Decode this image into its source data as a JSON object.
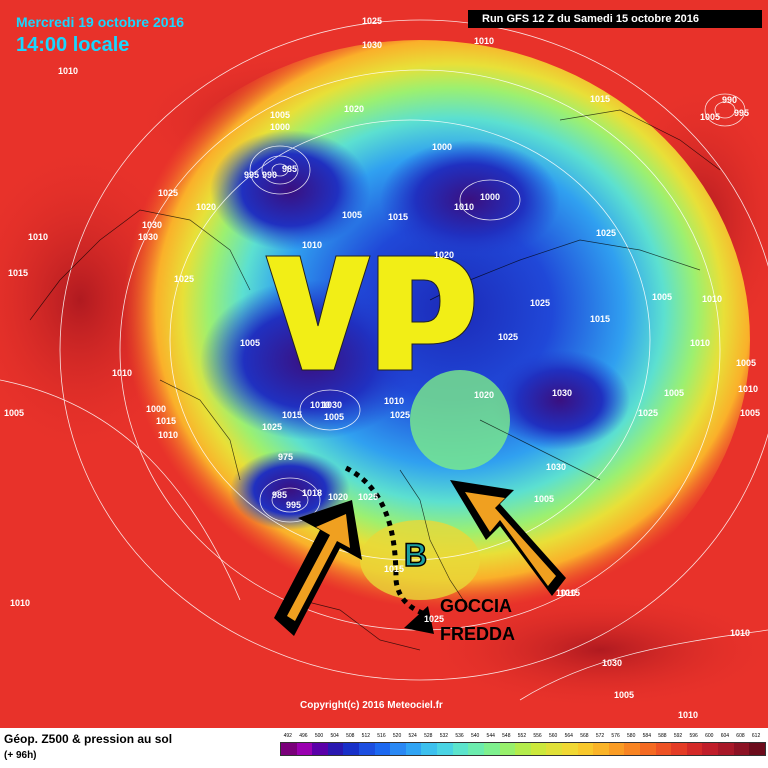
{
  "header": {
    "date": "Mercredi 19 octobre 2016",
    "time": "14:00 locale",
    "run": "Run GFS 12 Z du Samedi 15 octobre 2016"
  },
  "annotations": {
    "vp": "VP",
    "b": "B",
    "goccia1": "GOCCIA",
    "goccia2": "FREDDA"
  },
  "copyright": "Copyright(c) 2016 Meteociel.fr",
  "footer": {
    "title": "Géop. Z500 & pression au sol",
    "sub": "(+ 96h)"
  },
  "scale": {
    "labels": [
      "492",
      "496",
      "500",
      "504",
      "508",
      "512",
      "516",
      "520",
      "524",
      "528",
      "532",
      "536",
      "540",
      "544",
      "548",
      "552",
      "556",
      "560",
      "564",
      "568",
      "572",
      "576",
      "580",
      "584",
      "588",
      "592",
      "596",
      "600",
      "604",
      "608",
      "612"
    ],
    "colors": [
      "#7a007a",
      "#9a00b0",
      "#5a00a8",
      "#2a18b0",
      "#1830c8",
      "#1c4ee0",
      "#1c68f0",
      "#2a88f4",
      "#30a4f4",
      "#3cc0ee",
      "#4ad4e4",
      "#5ce4cc",
      "#6cecae",
      "#7ef08e",
      "#98f06c",
      "#b4ec4c",
      "#cce83c",
      "#e0e038",
      "#f0d834",
      "#f8c82c",
      "#fab428",
      "#fa9c24",
      "#f88422",
      "#f46a22",
      "#ee5224",
      "#e43c26",
      "#d42a28",
      "#c01e2a",
      "#a81828",
      "#8c1224",
      "#6c0c1c"
    ]
  },
  "isobars": [
    {
      "label": "1025",
      "pos": "top-center"
    },
    {
      "label": "1030",
      "pos": "top-center-2"
    },
    {
      "label": "1010",
      "pos": "top-right-1"
    },
    {
      "label": "1010",
      "pos": "top-left"
    },
    {
      "label": "1015",
      "pos": "right-1"
    },
    {
      "label": "990",
      "pos": "right-low-1"
    },
    {
      "label": "995",
      "pos": "right-low-2"
    },
    {
      "label": "1005",
      "pos": "right-low-3"
    },
    {
      "label": "1005",
      "pos": "pacific-1"
    },
    {
      "label": "1000",
      "pos": "pacific-2"
    },
    {
      "label": "995",
      "pos": "pacific-3"
    },
    {
      "label": "990",
      "pos": "pacific-4"
    },
    {
      "label": "985",
      "pos": "pacific-5"
    },
    {
      "label": "1020",
      "pos": "bering"
    },
    {
      "label": "1000",
      "pos": "siberia-1"
    },
    {
      "label": "1000",
      "pos": "siberia-2"
    },
    {
      "label": "1010",
      "pos": "siberia-3"
    },
    {
      "label": "1005",
      "pos": "siberia-4"
    },
    {
      "label": "1025",
      "pos": "alaska"
    },
    {
      "label": "1020",
      "pos": "alaska-2"
    },
    {
      "label": "1030",
      "pos": "canada-1"
    },
    {
      "label": "1030",
      "pos": "canada-2"
    },
    {
      "label": "1010",
      "pos": "canada-3"
    },
    {
      "label": "1015",
      "pos": "canada-4"
    },
    {
      "label": "1025",
      "pos": "canada-5"
    },
    {
      "label": "1005",
      "pos": "arctic-1"
    },
    {
      "label": "1015",
      "pos": "arctic-2"
    },
    {
      "label": "1010",
      "pos": "arctic-3"
    },
    {
      "label": "1020",
      "pos": "arctic-4"
    },
    {
      "label": "1025",
      "pos": "asia-1"
    },
    {
      "label": "1025",
      "pos": "asia-2"
    },
    {
      "label": "1005",
      "pos": "asia-3"
    },
    {
      "label": "1010",
      "pos": "asia-4"
    },
    {
      "label": "1015",
      "pos": "asia-5"
    },
    {
      "label": "1010",
      "pos": "asia-6"
    },
    {
      "label": "1005",
      "pos": "asia-7"
    },
    {
      "label": "1025",
      "pos": "greenland-1"
    },
    {
      "label": "1010",
      "pos": "greenland-2"
    },
    {
      "label": "1015",
      "pos": "greenland-3"
    },
    {
      "label": "1025",
      "pos": "greenland-4"
    },
    {
      "label": "1030",
      "pos": "greenland-5"
    },
    {
      "label": "1005",
      "pos": "scandi-1"
    },
    {
      "label": "1010",
      "pos": "scandi-2"
    },
    {
      "label": "1025",
      "pos": "scandi-3"
    },
    {
      "label": "1020",
      "pos": "russia-1"
    },
    {
      "label": "1030",
      "pos": "russia-2"
    },
    {
      "label": "1025",
      "pos": "russia-3"
    },
    {
      "label": "1030",
      "pos": "russia-4"
    },
    {
      "label": "1005",
      "pos": "atlantic-1"
    },
    {
      "label": "975",
      "pos": "atlantic-2"
    },
    {
      "label": "985",
      "pos": "atlantic-3"
    },
    {
      "label": "995",
      "pos": "atlantic-4"
    },
    {
      "label": "1018",
      "pos": "atlantic-5"
    },
    {
      "label": "1020",
      "pos": "atlantic-6"
    },
    {
      "label": "1025",
      "pos": "europe-1"
    },
    {
      "label": "1015",
      "pos": "europe-2"
    },
    {
      "label": "1010",
      "pos": "west-1"
    },
    {
      "label": "1005",
      "pos": "west-2"
    },
    {
      "label": "1000",
      "pos": "west-3"
    },
    {
      "label": "1010",
      "pos": "west-4"
    },
    {
      "label": "1015",
      "pos": "west-5"
    },
    {
      "label": "1010",
      "pos": "east-1"
    },
    {
      "label": "1010",
      "pos": "east-2"
    },
    {
      "label": "1005",
      "pos": "east-3"
    },
    {
      "label": "1005",
      "pos": "east-4"
    },
    {
      "label": "1030",
      "pos": "east-5"
    },
    {
      "label": "1025",
      "pos": "east-6"
    },
    {
      "label": "1015",
      "pos": "south-1"
    },
    {
      "label": "1010",
      "pos": "south-2"
    },
    {
      "label": "1005",
      "pos": "south-3"
    },
    {
      "label": "1010",
      "pos": "south-4"
    },
    {
      "label": "1010",
      "pos": "south-5"
    }
  ]
}
